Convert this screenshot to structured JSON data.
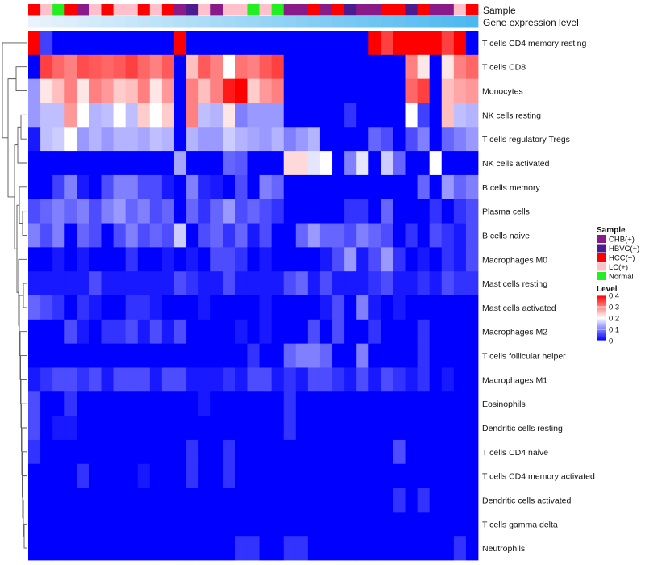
{
  "chart_data": {
    "type": "heatmap",
    "title": "",
    "annotation_labels": {
      "sample": "Sample",
      "gene_expression": "Gene expression level"
    },
    "sample_groups": [
      "HCC(+)",
      "LC(+)",
      "Normal",
      "HCC(+)",
      "CHB(+)",
      "LC(+)",
      "HCC(+)",
      "LC(+)",
      "LC(+)",
      "HCC(+)",
      "LC(+)",
      "HCC(+)",
      "CHB(+)",
      "HBVC(+)",
      "LC(+)",
      "CHB(+)",
      "LC(+)",
      "LC(+)",
      "Normal",
      "LC(+)",
      "Normal",
      "CHB(+)",
      "CHB(+)",
      "HCC(+)",
      "CHB(+)",
      "HCC(+)",
      "HBVC(+)",
      "CHB(+)",
      "CHB(+)",
      "HCC(+)",
      "HCC(+)",
      "HBVC(+)",
      "HCC(+)",
      "CHB(+)",
      "CHB(+)",
      "LC(+)",
      "HCC(+)"
    ],
    "gene_expression_values": [
      0.02,
      0.03,
      0.04,
      0.05,
      0.06,
      0.07,
      0.08,
      0.09,
      0.1,
      0.11,
      0.12,
      0.13,
      0.14,
      0.15,
      0.16,
      0.17,
      0.18,
      0.19,
      0.2,
      0.21,
      0.22,
      0.23,
      0.24,
      0.25,
      0.26,
      0.27,
      0.28,
      0.29,
      0.3,
      0.31,
      0.32,
      0.33,
      0.34,
      0.35,
      0.36,
      0.37,
      0.38
    ],
    "rows": [
      {
        "name": "T cells CD4 memory resting",
        "values": [
          0.4,
          0.05,
          0,
          0,
          0,
          0,
          0,
          0,
          0,
          0,
          0,
          0,
          0.4,
          0,
          0,
          0,
          0,
          0,
          0,
          0,
          0,
          0,
          0,
          0,
          0,
          0,
          0,
          0,
          0.4,
          0.35,
          0.4,
          0.4,
          0.4,
          0.4,
          0.35,
          0.4,
          0
        ]
      },
      {
        "name": "T cells CD8",
        "values": [
          0,
          0.35,
          0.32,
          0.3,
          0.34,
          0.33,
          0.32,
          0.33,
          0.35,
          0.32,
          0.3,
          0.33,
          0,
          0.25,
          0.33,
          0.3,
          0.2,
          0.31,
          0.3,
          0.33,
          0.35,
          0,
          0,
          0,
          0,
          0,
          0,
          0,
          0,
          0,
          0,
          0.3,
          0.22,
          0,
          0.22,
          0.3,
          0.32
        ]
      },
      {
        "name": "Monocytes",
        "values": [
          0.12,
          0.22,
          0.25,
          0.3,
          0.22,
          0.3,
          0.28,
          0.24,
          0.25,
          0.3,
          0.22,
          0.28,
          0,
          0.3,
          0.25,
          0.3,
          0.38,
          0.4,
          0.24,
          0.28,
          0.3,
          0,
          0,
          0,
          0,
          0,
          0,
          0,
          0,
          0,
          0,
          0.32,
          0.35,
          0,
          0.25,
          0.27,
          0.28
        ]
      },
      {
        "name": "NK cells resting",
        "values": [
          0.12,
          0.15,
          0.15,
          0.28,
          0.2,
          0.14,
          0.15,
          0.2,
          0.15,
          0.24,
          0.2,
          0.24,
          0,
          0.3,
          0.15,
          0.14,
          0.22,
          0.1,
          0.12,
          0.12,
          0.12,
          0,
          0,
          0,
          0,
          0,
          0.04,
          0,
          0,
          0,
          0,
          0.2,
          0.05,
          0,
          0.25,
          0.15,
          0.14
        ]
      },
      {
        "name": "T cells regulatory  Tregs",
        "values": [
          0.02,
          0.15,
          0.16,
          0.2,
          0.12,
          0.14,
          0.12,
          0.14,
          0.14,
          0.13,
          0.15,
          0.14,
          0,
          0.14,
          0.12,
          0.12,
          0.16,
          0.14,
          0.13,
          0.12,
          0.14,
          0.1,
          0.12,
          0.14,
          0,
          0,
          0,
          0,
          0.08,
          0.06,
          0,
          0.06,
          0.1,
          0,
          0.08,
          0.1,
          0.12
        ]
      },
      {
        "name": "NK cells activated",
        "values": [
          0,
          0,
          0,
          0,
          0,
          0,
          0,
          0,
          0,
          0,
          0,
          0,
          0.13,
          0,
          0,
          0,
          0.08,
          0.07,
          0,
          0,
          0,
          0.23,
          0.23,
          0.18,
          0.2,
          0,
          0.1,
          0.18,
          0,
          0.16,
          0.08,
          0,
          0,
          0.2,
          0,
          0,
          0
        ]
      },
      {
        "name": "B cells memory",
        "values": [
          0,
          0,
          0.05,
          0.1,
          0.02,
          0,
          0.06,
          0.1,
          0.1,
          0.06,
          0.06,
          0.02,
          0,
          0.1,
          0.03,
          0.02,
          0,
          0.06,
          0,
          0.1,
          0.08,
          0,
          0,
          0,
          0,
          0,
          0,
          0,
          0,
          0,
          0,
          0,
          0.08,
          0,
          0.12,
          0.08,
          0.1
        ]
      },
      {
        "name": "Plasma cells",
        "values": [
          0.06,
          0.08,
          0.1,
          0.08,
          0.1,
          0.06,
          0.1,
          0.12,
          0.08,
          0.1,
          0.06,
          0.08,
          0,
          0.08,
          0.04,
          0.08,
          0.12,
          0.06,
          0.08,
          0.06,
          0.04,
          0,
          0,
          0,
          0,
          0,
          0.04,
          0.04,
          0,
          0.08,
          0,
          0,
          0,
          0.04,
          0,
          0.04,
          0.06
        ]
      },
      {
        "name": "B cells naive",
        "values": [
          0.1,
          0.06,
          0.1,
          0,
          0.08,
          0.06,
          0,
          0.06,
          0.1,
          0.06,
          0.08,
          0.06,
          0.16,
          0,
          0.06,
          0.08,
          0.04,
          0.08,
          0.02,
          0.06,
          0,
          0,
          0.08,
          0.12,
          0.08,
          0.08,
          0.06,
          0.1,
          0.08,
          0.06,
          0,
          0.04,
          0,
          0.06,
          0.04,
          0.02,
          0.06
        ]
      },
      {
        "name": "Macrophages M0",
        "values": [
          0,
          0,
          0.02,
          0,
          0.02,
          0,
          0,
          0,
          0.04,
          0,
          0,
          0.02,
          0,
          0.02,
          0,
          0.06,
          0.06,
          0.04,
          0,
          0.02,
          0,
          0,
          0,
          0,
          0.02,
          0.06,
          0.12,
          0.02,
          0.06,
          0.12,
          0.04,
          0,
          0.02,
          0,
          0.04,
          0.02,
          0.06
        ]
      },
      {
        "name": "Mast cells resting",
        "values": [
          0.02,
          0.02,
          0.02,
          0.02,
          0.02,
          0.06,
          0.02,
          0.02,
          0.02,
          0.02,
          0.02,
          0.02,
          0.06,
          0.04,
          0.02,
          0.02,
          0.06,
          0.02,
          0.02,
          0.02,
          0.02,
          0.06,
          0.08,
          0.02,
          0.06,
          0.02,
          0.02,
          0.02,
          0.04,
          0.06,
          0.02,
          0.02,
          0.04,
          0.02,
          0.06,
          0.04,
          0.04
        ]
      },
      {
        "name": "Mast cells activated",
        "values": [
          0.08,
          0.06,
          0.04,
          0,
          0.04,
          0.02,
          0,
          0,
          0.04,
          0.04,
          0.02,
          0,
          0,
          0,
          0.02,
          0,
          0,
          0,
          0,
          0.02,
          0,
          0,
          0,
          0,
          0.02,
          0.06,
          0,
          0.1,
          0.02,
          0,
          0.02,
          0,
          0,
          0,
          0,
          0,
          0
        ]
      },
      {
        "name": "Macrophages M2",
        "values": [
          0,
          0,
          0,
          0.06,
          0.02,
          0,
          0.04,
          0.04,
          0.06,
          0.02,
          0.06,
          0.02,
          0.06,
          0,
          0,
          0,
          0,
          0.02,
          0,
          0.02,
          0,
          0,
          0,
          0.06,
          0,
          0.06,
          0,
          0,
          0.04,
          0,
          0,
          0,
          0.04,
          0,
          0,
          0,
          0
        ]
      },
      {
        "name": "T cells follicular helper",
        "values": [
          0,
          0,
          0,
          0,
          0,
          0,
          0,
          0,
          0,
          0,
          0,
          0,
          0,
          0,
          0,
          0,
          0,
          0,
          0.04,
          0,
          0,
          0.08,
          0.1,
          0.1,
          0.08,
          0,
          0,
          0.1,
          0,
          0,
          0,
          0,
          0.04,
          0,
          0,
          0,
          0
        ]
      },
      {
        "name": "Macrophages M1",
        "values": [
          0.02,
          0.04,
          0.06,
          0.06,
          0.04,
          0.06,
          0.02,
          0.06,
          0.06,
          0.06,
          0.02,
          0.06,
          0.06,
          0.02,
          0.02,
          0.02,
          0.04,
          0.02,
          0.06,
          0.06,
          0.02,
          0.04,
          0.02,
          0.06,
          0.06,
          0.04,
          0.02,
          0.06,
          0.02,
          0.06,
          0.04,
          0.02,
          0.04,
          0,
          0.02,
          0,
          0
        ]
      },
      {
        "name": "Eosinophils",
        "values": [
          0.06,
          0,
          0,
          0.04,
          0,
          0,
          0,
          0,
          0,
          0,
          0,
          0,
          0,
          0,
          0.02,
          0,
          0,
          0,
          0,
          0,
          0,
          0.04,
          0,
          0,
          0,
          0,
          0,
          0,
          0,
          0,
          0,
          0,
          0,
          0,
          0,
          0,
          0
        ]
      },
      {
        "name": "Dendritic cells resting",
        "values": [
          0.06,
          0,
          0.02,
          0.02,
          0,
          0,
          0,
          0,
          0,
          0,
          0,
          0,
          0,
          0,
          0,
          0,
          0,
          0,
          0,
          0,
          0,
          0.04,
          0,
          0,
          0,
          0,
          0,
          0,
          0,
          0,
          0,
          0,
          0,
          0,
          0,
          0,
          0
        ]
      },
      {
        "name": "T cells CD4 naive",
        "values": [
          0.04,
          0,
          0,
          0,
          0,
          0,
          0,
          0,
          0,
          0,
          0,
          0,
          0,
          0.04,
          0,
          0,
          0.04,
          0,
          0,
          0,
          0,
          0,
          0,
          0,
          0,
          0,
          0,
          0,
          0,
          0,
          0.06,
          0,
          0,
          0,
          0,
          0,
          0
        ]
      },
      {
        "name": "T cells CD4 memory activated",
        "values": [
          0,
          0,
          0,
          0,
          0.04,
          0,
          0,
          0,
          0,
          0.02,
          0,
          0,
          0,
          0.04,
          0,
          0,
          0.04,
          0,
          0,
          0,
          0,
          0,
          0,
          0,
          0,
          0,
          0,
          0,
          0,
          0,
          0,
          0,
          0,
          0,
          0,
          0,
          0
        ]
      },
      {
        "name": "Dendritic cells activated",
        "values": [
          0,
          0,
          0,
          0,
          0,
          0,
          0,
          0,
          0,
          0,
          0,
          0,
          0,
          0,
          0,
          0,
          0,
          0,
          0,
          0,
          0,
          0,
          0,
          0,
          0,
          0,
          0,
          0,
          0,
          0,
          0.04,
          0,
          0.04,
          0,
          0,
          0,
          0
        ]
      },
      {
        "name": "T cells gamma delta",
        "values": [
          0,
          0,
          0,
          0,
          0,
          0,
          0,
          0,
          0,
          0,
          0,
          0,
          0,
          0,
          0,
          0,
          0,
          0,
          0,
          0,
          0,
          0,
          0,
          0,
          0,
          0,
          0,
          0,
          0,
          0,
          0,
          0,
          0,
          0,
          0,
          0,
          0
        ]
      },
      {
        "name": "Neutrophils",
        "values": [
          0,
          0,
          0,
          0,
          0,
          0,
          0,
          0,
          0,
          0,
          0,
          0,
          0,
          0,
          0,
          0,
          0,
          0.04,
          0.04,
          0,
          0,
          0.04,
          0.04,
          0,
          0,
          0,
          0,
          0,
          0,
          0,
          0,
          0,
          0,
          0,
          0,
          0.04,
          0
        ]
      }
    ],
    "legend": {
      "sample_title": "Sample",
      "sample_entries": [
        {
          "label": "CHB(+)",
          "color": "#8b1a89"
        },
        {
          "label": "HBVC(+)",
          "color": "#4b1b8f"
        },
        {
          "label": "HCC(+)",
          "color": "#ff0000"
        },
        {
          "label": "LC(+)",
          "color": "#ffc0cb"
        },
        {
          "label": "Normal",
          "color": "#22ee22"
        }
      ],
      "level_title": "Level",
      "level_ticks": [
        0,
        0.1,
        0.2,
        0.3,
        0.4
      ],
      "level_tick_labels": [
        "0",
        "0.1",
        "0.2",
        "0.3",
        "0.4"
      ],
      "level_min": 0,
      "level_max": 0.4,
      "placement": "right"
    },
    "colors": {
      "low": "#0000ff",
      "mid": "#ffffff",
      "high": "#ff0000",
      "gene_low": "#e8f3fb",
      "gene_high": "#4db8f0"
    }
  }
}
